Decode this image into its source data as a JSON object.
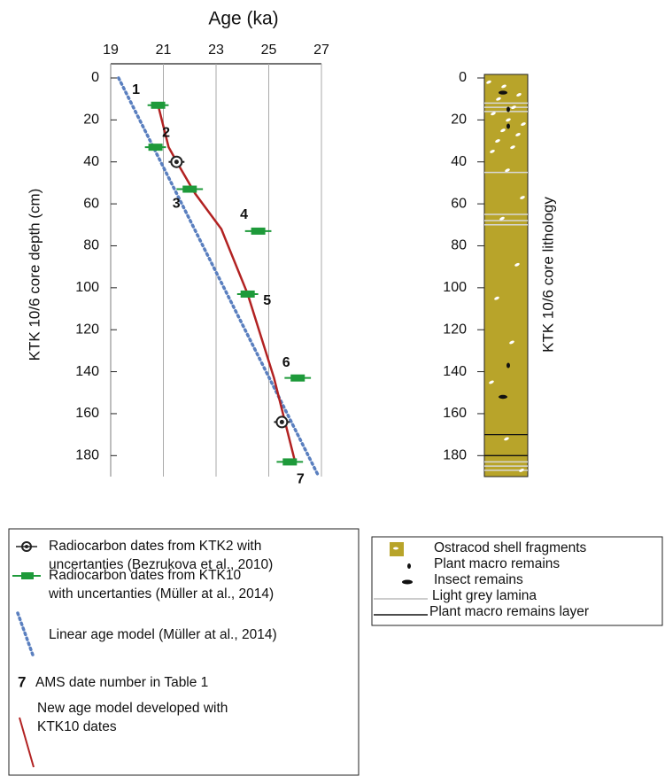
{
  "chart_data": [
    {
      "type": "age-depth",
      "title": "Age (ka)",
      "y_label": "KTK 10/6  core depth (cm)",
      "xlim": [
        19,
        27
      ],
      "xticks": [
        19,
        21,
        23,
        25,
        27
      ],
      "x_grid": true,
      "ylim": [
        0,
        190
      ],
      "yticks": [
        0,
        20,
        40,
        60,
        80,
        100,
        120,
        140,
        160,
        180
      ],
      "series": [
        {
          "name": "Radiocarbon dates from KTK2 with\nuncertanties (Bezrukova et al., 2010)",
          "marker": "circle",
          "color": "#222222",
          "x": [
            21.5,
            25.5
          ],
          "y": [
            40,
            164
          ],
          "x_err": [
            0.3,
            0.3
          ]
        },
        {
          "name": "Radiocarbon dates from KTK10\nwith uncertanties (Müller at al., 2014)",
          "marker": "bar",
          "color": "#1e9a3a",
          "x": [
            20.8,
            20.7,
            22.0,
            24.6,
            24.2,
            26.1,
            25.8
          ],
          "y": [
            13,
            33,
            53,
            73,
            103,
            143,
            183
          ],
          "x_err": [
            0.4,
            0.4,
            0.5,
            0.5,
            0.4,
            0.5,
            0.5
          ],
          "point_labels": [
            "1",
            "2",
            "3",
            "4",
            "5",
            "6",
            "7"
          ]
        },
        {
          "name": "Linear age model  (Müller at al., 2014)",
          "marker": "dotted",
          "color": "#5a7fbf",
          "x": [
            19.3,
            26.9
          ],
          "y": [
            0,
            190
          ]
        },
        {
          "name": "New age model developed with\nKTK10 dates",
          "marker": "line",
          "color": "#b22222",
          "x": [
            20.8,
            21.2,
            21.6,
            22.2,
            23.2,
            24.2,
            25.2,
            26.0
          ],
          "y": [
            13,
            33,
            42,
            55,
            72,
            103,
            143,
            183
          ]
        }
      ],
      "legend_note": {
        "symbol": "7",
        "text": "AMS date number in Table 1"
      }
    },
    {
      "type": "lithology",
      "y_label": "KTK 10/6  core lithology",
      "ylim": [
        0,
        190
      ],
      "yticks": [
        0,
        20,
        40,
        60,
        80,
        100,
        120,
        140,
        160,
        180
      ],
      "column_color": "#b8a42a",
      "shell_fragments": [
        2,
        4,
        8,
        10,
        14,
        17,
        20,
        22,
        25,
        27,
        30,
        33,
        35,
        44,
        57,
        67,
        89,
        105,
        126,
        145,
        172,
        187
      ],
      "plant_remains": [
        15,
        23,
        137
      ],
      "insect_remains": [
        7,
        152
      ],
      "light_lamina": [
        12,
        14,
        16,
        45,
        65,
        68,
        70,
        183,
        185,
        187
      ],
      "plant_layers": [
        170,
        180
      ],
      "legend": [
        "Ostracod shell fragments",
        "Plant macro remains",
        "Insect remains",
        "Light grey lamina",
        "Plant macro remains layer"
      ]
    }
  ]
}
